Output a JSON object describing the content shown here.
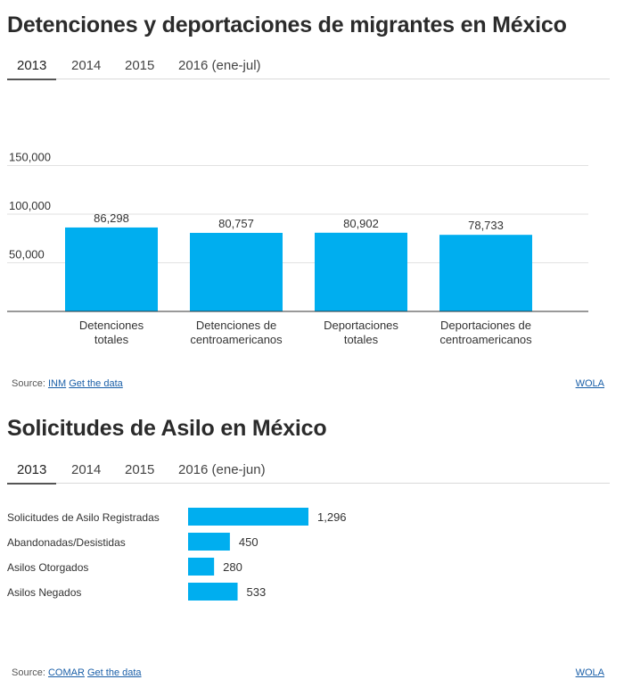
{
  "sections": [
    {
      "title": "Detenciones y deportaciones de migrantes en México",
      "tabs": [
        "2013",
        "2014",
        "2015",
        "2016 (ene-jul)"
      ],
      "active_tab": "2013",
      "source_label": "Source:",
      "source_link": "INM",
      "data_link": "Get the data",
      "credit": "WOLA"
    },
    {
      "title": "Solicitudes de Asilo en México",
      "tabs": [
        "2013",
        "2014",
        "2015",
        "2016 (ene-jun)"
      ],
      "active_tab": "2013",
      "source_label": "Source:",
      "source_link": "COMAR",
      "data_link": "Get the data",
      "credit": "WOLA"
    }
  ],
  "chart_data": [
    {
      "type": "bar",
      "title": "Detenciones y deportaciones de migrantes en México",
      "categories": [
        [
          "Detenciones",
          "totales"
        ],
        [
          "Detenciones de",
          "centroamericanos"
        ],
        [
          "Deportaciones",
          "totales"
        ],
        [
          "Deportaciones de",
          "centroamericanos"
        ]
      ],
      "values": [
        86298,
        80757,
        80902,
        78733
      ],
      "value_labels": [
        "86,298",
        "80,757",
        "80,902",
        "78,733"
      ],
      "yticks": [
        50000,
        100000,
        150000
      ],
      "ytick_labels": [
        "50,000",
        "100,000",
        "150,000"
      ],
      "ylim": [
        0,
        160000
      ],
      "color": "#00aeef"
    },
    {
      "type": "bar",
      "orientation": "horizontal",
      "title": "Solicitudes de Asilo en México",
      "categories": [
        "Solicitudes de Asilo Registradas",
        "Abandonadas/Desistidas",
        "Asilos Otorgados",
        "Asilos Negados"
      ],
      "values": [
        1296,
        450,
        280,
        533
      ],
      "value_labels": [
        "1,296",
        "450",
        "280",
        "533"
      ],
      "color": "#00aeef"
    }
  ]
}
